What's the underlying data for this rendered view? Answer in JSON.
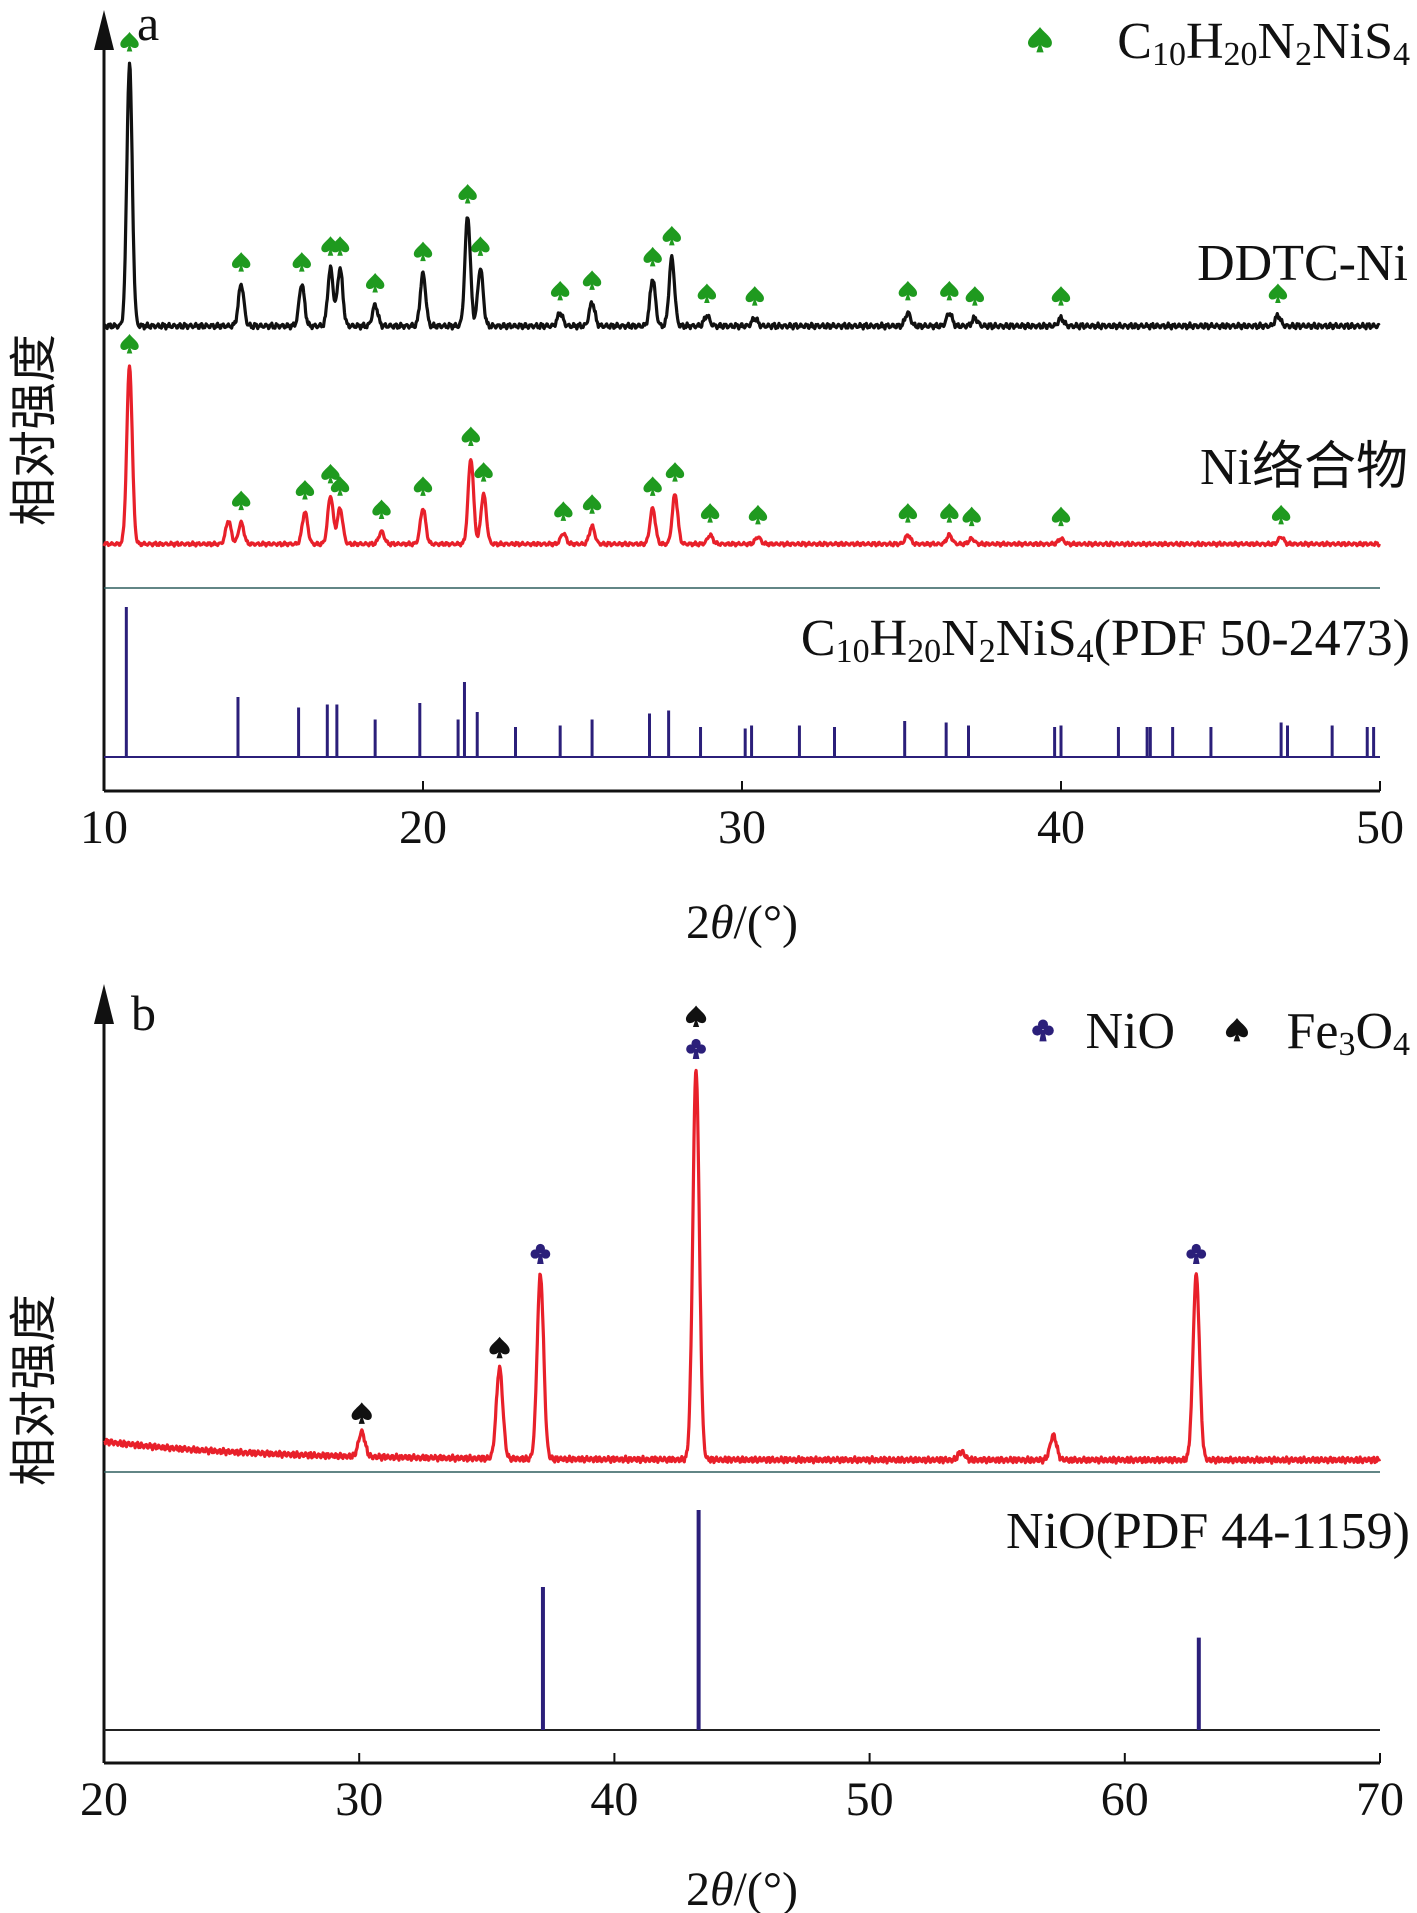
{
  "chart_data": [
    {
      "type": "line",
      "panel": "a",
      "xlabel_prefix": "2",
      "xlabel_var": "θ",
      "xlabel_suffix": "/(°)",
      "ylabel": "相对强度",
      "xlim": [
        10,
        50
      ],
      "xticks": [
        "10",
        "20",
        "30",
        "40",
        "50"
      ],
      "legend": {
        "marker": "spade",
        "marker_color": "#1f9a1f",
        "label_parts": [
          {
            "t": "C",
            "sub": false
          },
          {
            "t": "10",
            "sub": true
          },
          {
            "t": "H",
            "sub": false
          },
          {
            "t": "20",
            "sub": true
          },
          {
            "t": "N",
            "sub": false
          },
          {
            "t": "2",
            "sub": true
          },
          {
            "t": "NiS",
            "sub": false
          },
          {
            "t": "4",
            "sub": true
          }
        ]
      },
      "series": [
        {
          "name": "DDTC-Ni",
          "color": "#111111",
          "peaks": [
            [
              10.8,
              1.0
            ],
            [
              14.3,
              0.16
            ],
            [
              16.2,
              0.16
            ],
            [
              17.1,
              0.22
            ],
            [
              17.4,
              0.22
            ],
            [
              18.5,
              0.08
            ],
            [
              20.0,
              0.2
            ],
            [
              21.4,
              0.42
            ],
            [
              21.8,
              0.22
            ],
            [
              24.3,
              0.05
            ],
            [
              25.3,
              0.09
            ],
            [
              27.2,
              0.18
            ],
            [
              27.8,
              0.26
            ],
            [
              28.9,
              0.04
            ],
            [
              30.4,
              0.03
            ],
            [
              35.2,
              0.05
            ],
            [
              36.5,
              0.05
            ],
            [
              37.3,
              0.03
            ],
            [
              40.0,
              0.03
            ],
            [
              46.8,
              0.04
            ]
          ],
          "peak_markers": [
            10.8,
            14.3,
            16.2,
            17.1,
            17.4,
            18.5,
            20.0,
            21.4,
            21.8,
            24.3,
            25.3,
            27.2,
            27.8,
            28.9,
            30.4,
            35.2,
            36.5,
            37.3,
            40.0,
            46.8
          ]
        },
        {
          "name": "Ni络合物",
          "color": "#e8202a",
          "peaks": [
            [
              10.8,
              1.0
            ],
            [
              13.9,
              0.13
            ],
            [
              14.3,
              0.12
            ],
            [
              16.3,
              0.18
            ],
            [
              17.1,
              0.27
            ],
            [
              17.4,
              0.2
            ],
            [
              18.7,
              0.07
            ],
            [
              20.0,
              0.2
            ],
            [
              21.5,
              0.48
            ],
            [
              21.9,
              0.28
            ],
            [
              24.4,
              0.06
            ],
            [
              25.3,
              0.1
            ],
            [
              27.2,
              0.2
            ],
            [
              27.9,
              0.28
            ],
            [
              29.0,
              0.05
            ],
            [
              30.5,
              0.04
            ],
            [
              35.2,
              0.05
            ],
            [
              36.5,
              0.05
            ],
            [
              37.2,
              0.03
            ],
            [
              40.0,
              0.03
            ],
            [
              46.9,
              0.04
            ]
          ],
          "peak_markers": [
            10.8,
            14.3,
            16.3,
            17.1,
            17.4,
            18.7,
            20.0,
            21.5,
            21.9,
            24.4,
            25.3,
            27.2,
            27.9,
            29.0,
            30.5,
            35.2,
            36.5,
            37.2,
            40.0,
            46.9
          ]
        }
      ],
      "reference": {
        "label_parts": [
          {
            "t": "C",
            "sub": false
          },
          {
            "t": "10",
            "sub": true
          },
          {
            "t": "H",
            "sub": false
          },
          {
            "t": "20",
            "sub": true
          },
          {
            "t": "N",
            "sub": false
          },
          {
            "t": "2",
            "sub": true
          },
          {
            "t": "NiS",
            "sub": false
          },
          {
            "t": "4",
            "sub": true
          },
          {
            "t": "(PDF 50-2473)",
            "sub": false
          }
        ],
        "color": "#2b1f7a",
        "lines": [
          [
            10.7,
            1.0
          ],
          [
            14.2,
            0.4
          ],
          [
            16.1,
            0.33
          ],
          [
            17.0,
            0.35
          ],
          [
            17.3,
            0.35
          ],
          [
            18.5,
            0.25
          ],
          [
            19.9,
            0.36
          ],
          [
            21.1,
            0.25
          ],
          [
            21.3,
            0.5
          ],
          [
            21.7,
            0.3
          ],
          [
            22.9,
            0.2
          ],
          [
            24.3,
            0.21
          ],
          [
            25.3,
            0.25
          ],
          [
            27.1,
            0.29
          ],
          [
            27.7,
            0.31
          ],
          [
            28.7,
            0.2
          ],
          [
            30.1,
            0.19
          ],
          [
            30.3,
            0.21
          ],
          [
            31.8,
            0.21
          ],
          [
            32.9,
            0.2
          ],
          [
            35.1,
            0.24
          ],
          [
            36.4,
            0.23
          ],
          [
            37.1,
            0.21
          ],
          [
            39.8,
            0.2
          ],
          [
            40.0,
            0.21
          ],
          [
            41.8,
            0.2
          ],
          [
            42.7,
            0.2
          ],
          [
            42.8,
            0.2
          ],
          [
            43.5,
            0.2
          ],
          [
            44.7,
            0.2
          ],
          [
            46.9,
            0.23
          ],
          [
            47.1,
            0.21
          ],
          [
            48.5,
            0.21
          ],
          [
            49.6,
            0.2
          ],
          [
            49.8,
            0.2
          ]
        ]
      }
    },
    {
      "type": "line",
      "panel": "b",
      "xlabel_prefix": "2",
      "xlabel_var": "θ",
      "xlabel_suffix": "/(°)",
      "ylabel": "相对强度",
      "xlim": [
        20,
        70
      ],
      "xticks": [
        "20",
        "30",
        "40",
        "50",
        "60",
        "70"
      ],
      "legend": [
        {
          "marker": "club",
          "marker_color": "#2b1f7a",
          "label_parts": [
            {
              "t": "NiO",
              "sub": false
            }
          ]
        },
        {
          "marker": "spade",
          "marker_color": "#111111",
          "label_parts": [
            {
              "t": "Fe",
              "sub": false
            },
            {
              "t": "3",
              "sub": true
            },
            {
              "t": "O",
              "sub": false
            },
            {
              "t": "4",
              "sub": true
            }
          ]
        }
      ],
      "series": [
        {
          "name": "",
          "color": "#e8202a",
          "peaks": [
            [
              30.1,
              0.06
            ],
            [
              35.5,
              0.22
            ],
            [
              37.1,
              0.45
            ],
            [
              43.2,
              0.95
            ],
            [
              53.6,
              0.02
            ],
            [
              57.2,
              0.06
            ],
            [
              62.8,
              0.45
            ]
          ],
          "markers": [
            {
              "x": 30.1,
              "type": "spade"
            },
            {
              "x": 35.5,
              "type": "spade"
            },
            {
              "x": 37.1,
              "type": "club"
            },
            {
              "x": 43.2,
              "type": "club"
            },
            {
              "x": 43.2,
              "type": "spade"
            },
            {
              "x": 62.8,
              "type": "club"
            }
          ]
        }
      ],
      "reference": {
        "label_parts": [
          {
            "t": "NiO(PDF 44-1159)",
            "sub": false
          }
        ],
        "color": "#2b1f7a",
        "lines": [
          [
            37.2,
            0.65
          ],
          [
            43.3,
            1.0
          ],
          [
            62.9,
            0.42
          ]
        ]
      }
    }
  ]
}
